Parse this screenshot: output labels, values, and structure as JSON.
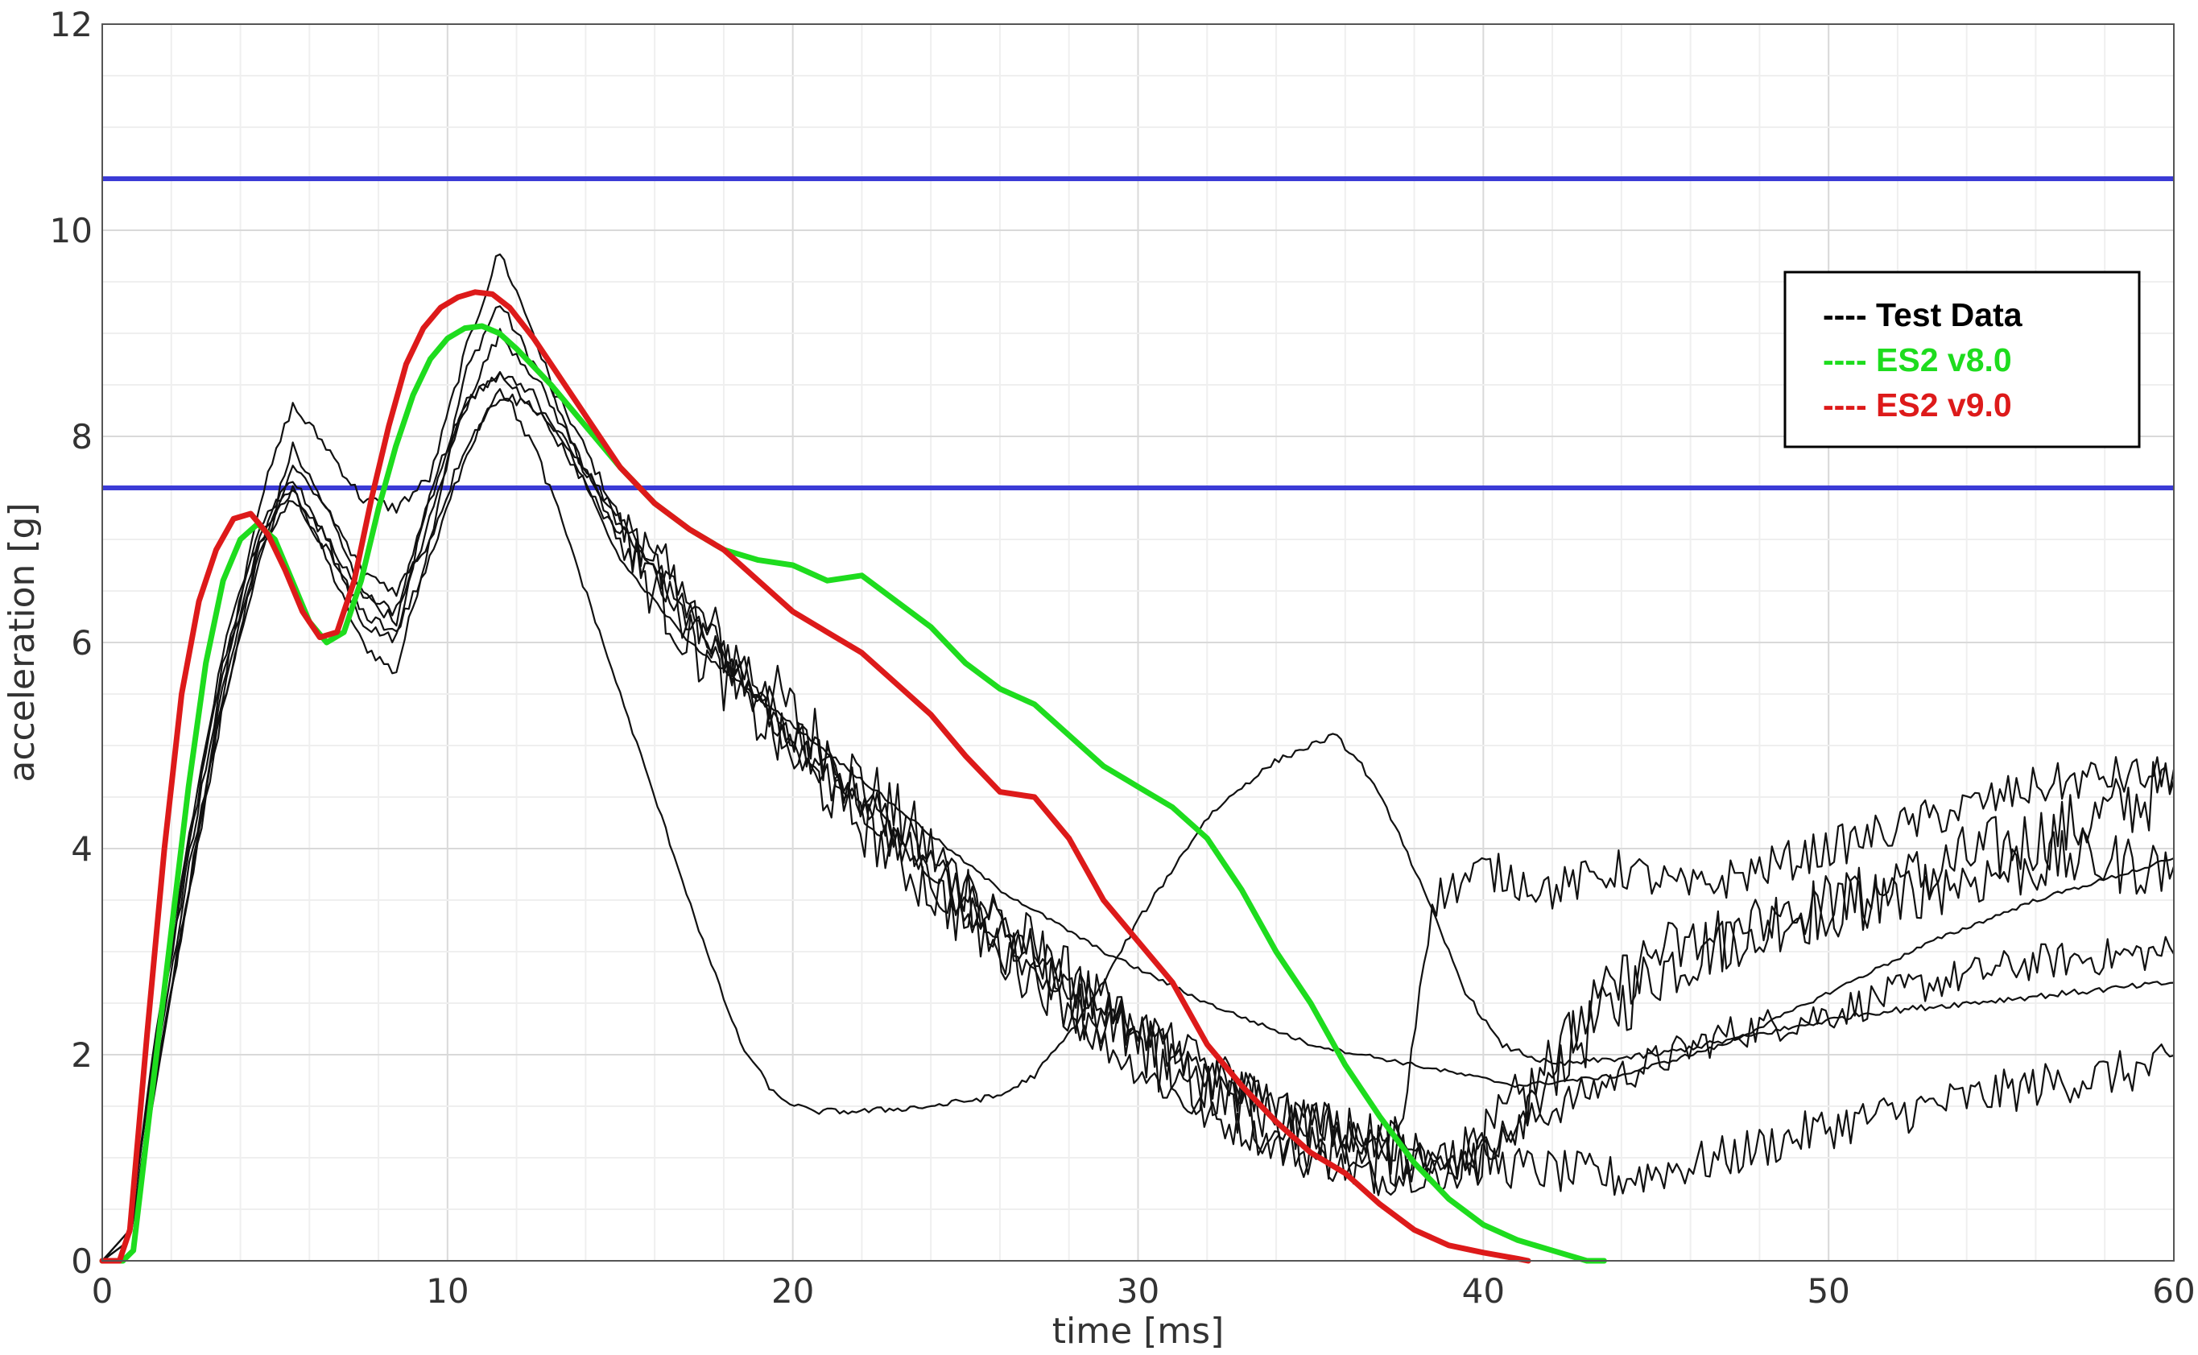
{
  "chart_data": {
    "type": "line",
    "xlabel": "time [ms]",
    "ylabel": "acceleration [g]",
    "xlim": [
      0,
      60
    ],
    "ylim": [
      0,
      12
    ],
    "x_ticks": [
      0,
      10,
      20,
      30,
      40,
      50,
      60
    ],
    "y_ticks": [
      0,
      2,
      4,
      6,
      8,
      10,
      12
    ],
    "grid": true,
    "legend_position": "top-right",
    "legend": [
      {
        "text": "---- Test Data",
        "color": "#000000"
      },
      {
        "text": "---- ES2 v8.0",
        "color": "#1edc1e"
      },
      {
        "text": "---- ES2 v9.0",
        "color": "#dd1a1a"
      }
    ],
    "reference_lines": [
      {
        "y": 10.5,
        "color": "#3b3bd6"
      },
      {
        "y": 7.5,
        "color": "#3b3bd6"
      }
    ],
    "series": [
      {
        "name": "ES2 v8.0",
        "color": "#1edc1e",
        "width": 7,
        "x": [
          0,
          0.6,
          0.9,
          1.5,
          2,
          2.5,
          3,
          3.5,
          4,
          4.5,
          5,
          5.5,
          6,
          6.5,
          7,
          7.5,
          8,
          8.5,
          9,
          9.5,
          10,
          10.5,
          11,
          11.5,
          12,
          13,
          14,
          15,
          16,
          17,
          18,
          19,
          20,
          21,
          22,
          23,
          24,
          25,
          26,
          27,
          28,
          29,
          30,
          31,
          32,
          33,
          34,
          35,
          36,
          37,
          38,
          39,
          40,
          41,
          42,
          43,
          43.5
        ],
        "y": [
          0,
          0,
          0.1,
          1.8,
          3.2,
          4.6,
          5.8,
          6.6,
          7.0,
          7.15,
          7.0,
          6.6,
          6.2,
          6.0,
          6.1,
          6.6,
          7.3,
          7.9,
          8.4,
          8.75,
          8.95,
          9.05,
          9.07,
          9.0,
          8.85,
          8.5,
          8.1,
          7.7,
          7.35,
          7.1,
          6.9,
          6.8,
          6.75,
          6.6,
          6.65,
          6.4,
          6.15,
          5.8,
          5.55,
          5.4,
          5.1,
          4.8,
          4.6,
          4.4,
          4.1,
          3.6,
          3.0,
          2.5,
          1.9,
          1.4,
          0.95,
          0.6,
          0.35,
          0.2,
          0.1,
          0.0,
          0.0
        ]
      },
      {
        "name": "ES2 v9.0",
        "color": "#dd1a1a",
        "width": 7,
        "x": [
          0,
          0.5,
          0.8,
          1.3,
          1.8,
          2.3,
          2.8,
          3.3,
          3.8,
          4.3,
          4.8,
          5.3,
          5.8,
          6.3,
          6.8,
          7.3,
          7.8,
          8.3,
          8.8,
          9.3,
          9.8,
          10.3,
          10.8,
          11.3,
          11.8,
          12.5,
          13,
          14,
          15,
          16,
          17,
          18,
          19,
          20,
          21,
          22,
          23,
          24,
          25,
          26,
          27,
          28,
          29,
          30,
          31,
          32,
          33,
          34,
          35,
          36,
          37,
          38,
          39,
          40,
          41,
          41.3
        ],
        "y": [
          0,
          0,
          0.3,
          2.2,
          4.0,
          5.5,
          6.4,
          6.9,
          7.2,
          7.25,
          7.05,
          6.7,
          6.3,
          6.05,
          6.1,
          6.6,
          7.4,
          8.1,
          8.7,
          9.05,
          9.25,
          9.35,
          9.4,
          9.38,
          9.25,
          8.95,
          8.7,
          8.2,
          7.7,
          7.35,
          7.1,
          6.9,
          6.6,
          6.3,
          6.1,
          5.9,
          5.6,
          5.3,
          4.9,
          4.55,
          4.5,
          4.1,
          3.5,
          3.1,
          2.7,
          2.1,
          1.7,
          1.35,
          1.05,
          0.85,
          0.55,
          0.3,
          0.15,
          0.08,
          0.02,
          0.0
        ]
      },
      {
        "name": "Test Data",
        "color": "#111111",
        "width": 2.2,
        "noise": 0.35,
        "noise_from": 16,
        "x": [
          0,
          0.8,
          1.5,
          2.5,
          3.5,
          4.5,
          5.5,
          6.5,
          7.5,
          8.5,
          9.5,
          10.5,
          11.5,
          12.5,
          13.5,
          15,
          17,
          20,
          23,
          26,
          29,
          32,
          35,
          38,
          40,
          42,
          45,
          48,
          51,
          54,
          57,
          60
        ],
        "y": [
          0,
          0.3,
          2.0,
          4.0,
          5.8,
          7.0,
          7.5,
          6.8,
          6.0,
          5.7,
          7.0,
          8.6,
          9.3,
          8.7,
          8.2,
          7.2,
          6.3,
          5.3,
          4.3,
          3.3,
          2.4,
          1.6,
          1.1,
          0.9,
          1.1,
          1.9,
          2.8,
          3.3,
          3.5,
          3.9,
          4.2,
          4.6
        ]
      },
      {
        "name": "Test Data",
        "color": "#111111",
        "width": 2.2,
        "noise": 0.18,
        "noise_from": 15,
        "x": [
          0,
          0.8,
          1.5,
          2.5,
          3.5,
          4.5,
          5.5,
          6.5,
          7.5,
          8.5,
          9.5,
          10.5,
          11.5,
          12.5,
          13.5,
          15,
          17,
          20,
          23,
          26,
          29,
          32,
          35,
          37,
          39,
          41,
          44,
          47,
          50,
          53,
          56,
          60
        ],
        "y": [
          0,
          0.2,
          1.6,
          3.6,
          5.6,
          7.3,
          8.3,
          7.9,
          7.4,
          7.3,
          7.6,
          8.8,
          9.8,
          9.0,
          8.0,
          7.0,
          6.2,
          5.0,
          4.0,
          3.0,
          2.1,
          1.4,
          1.0,
          0.8,
          0.9,
          1.3,
          1.8,
          2.2,
          2.4,
          2.7,
          2.9,
          3.0
        ]
      },
      {
        "name": "Test Data",
        "color": "#111111",
        "width": 2.2,
        "noise": 0.22,
        "noise_from": 16,
        "x": [
          0,
          0.8,
          1.5,
          2.5,
          3.5,
          4.5,
          5.5,
          6.5,
          7.5,
          8.5,
          9.5,
          10.5,
          11.5,
          12.5,
          13.5,
          15,
          17,
          20,
          23,
          26,
          29,
          32,
          35,
          38,
          41,
          44,
          47,
          50,
          53,
          56,
          60
        ],
        "y": [
          0,
          0.2,
          1.8,
          3.8,
          5.4,
          6.7,
          7.9,
          7.3,
          6.5,
          6.2,
          7.2,
          8.3,
          9.0,
          8.6,
          8.0,
          7.1,
          6.3,
          5.1,
          4.2,
          3.3,
          2.4,
          1.8,
          1.4,
          1.1,
          0.9,
          0.8,
          1.0,
          1.3,
          1.5,
          1.7,
          1.9
        ]
      },
      {
        "name": "Test Data",
        "color": "#111111",
        "width": 2.2,
        "noise": 0.3,
        "noise_from": 15,
        "x": [
          0,
          0.8,
          1.5,
          2.5,
          3.5,
          4.5,
          5.5,
          6.5,
          7.5,
          8.5,
          9.5,
          10.5,
          11.5,
          12.5,
          13.5,
          15,
          17,
          20,
          23,
          26,
          29,
          32,
          35,
          37.5,
          39,
          41,
          43,
          45,
          47,
          49,
          51,
          54,
          57,
          60
        ],
        "y": [
          0,
          0.3,
          2.1,
          4.1,
          5.9,
          7.1,
          7.6,
          7.0,
          6.2,
          6.0,
          7.5,
          8.3,
          8.6,
          8.3,
          7.8,
          7.0,
          6.0,
          4.9,
          3.9,
          3.0,
          2.3,
          1.7,
          1.3,
          1.1,
          0.9,
          1.4,
          2.4,
          3.0,
          3.1,
          3.3,
          3.5,
          3.7,
          3.9,
          3.8
        ]
      },
      {
        "name": "Test Data",
        "color": "#111111",
        "width": 2.2,
        "noise": 0.2,
        "noise_from": 15,
        "x": [
          0,
          0.8,
          1.5,
          2.5,
          3.5,
          4.5,
          5.5,
          6.5,
          7.5,
          8.5,
          9.5,
          10.5,
          11.5,
          12.5,
          13.5,
          15,
          17,
          20,
          23,
          26,
          29,
          32,
          34,
          36,
          37.5,
          38.5,
          40,
          42,
          44,
          46,
          48,
          50,
          52,
          54,
          56,
          58,
          60
        ],
        "y": [
          0,
          0.3,
          2.0,
          3.9,
          5.7,
          6.9,
          7.7,
          7.3,
          6.7,
          6.5,
          7.0,
          7.9,
          8.4,
          8.3,
          7.9,
          7.2,
          6.3,
          5.1,
          4.1,
          3.2,
          2.5,
          1.9,
          1.5,
          1.2,
          1.0,
          3.5,
          3.8,
          3.6,
          3.8,
          3.6,
          3.8,
          4.0,
          4.2,
          4.4,
          4.6,
          4.7,
          4.7
        ]
      },
      {
        "name": "Test Data",
        "color": "#111111",
        "width": 2.2,
        "noise": 0.03,
        "noise_from": 14,
        "x": [
          0,
          0.8,
          1.5,
          2.5,
          3.5,
          4.5,
          5.5,
          6.5,
          7.5,
          8.5,
          9.5,
          10.5,
          11.5,
          12.5,
          13.5,
          14.5,
          15.5,
          16.5,
          17.5,
          18.5,
          19.5,
          20.5,
          22,
          24,
          26,
          27,
          28,
          29,
          30,
          31,
          32,
          33,
          34,
          35,
          35.7,
          36.5,
          37.5,
          38.5,
          39.5,
          40.5,
          42,
          45,
          48,
          51,
          54,
          57,
          60
        ],
        "y": [
          0,
          0.2,
          1.7,
          3.5,
          5.4,
          6.8,
          7.4,
          6.9,
          6.3,
          6.1,
          6.8,
          7.8,
          8.5,
          7.9,
          7.0,
          6.0,
          5.0,
          4.0,
          3.0,
          2.1,
          1.6,
          1.45,
          1.45,
          1.5,
          1.6,
          1.8,
          2.2,
          2.7,
          3.3,
          3.8,
          4.3,
          4.6,
          4.85,
          5.0,
          5.1,
          4.8,
          4.2,
          3.4,
          2.6,
          2.1,
          1.9,
          2.0,
          2.2,
          2.4,
          2.5,
          2.6,
          2.7
        ]
      },
      {
        "name": "Test Data",
        "color": "#111111",
        "width": 2.2,
        "noise": 0.02,
        "noise_from": 14,
        "x": [
          0,
          0.8,
          1.5,
          2.5,
          3.5,
          4.5,
          5.5,
          6.5,
          7.5,
          8.5,
          9.5,
          10.5,
          11.5,
          12.5,
          13.5,
          15,
          17,
          20,
          23,
          26,
          29,
          32,
          35,
          38,
          41,
          44,
          47,
          50,
          53,
          56,
          60
        ],
        "y": [
          0,
          0.2,
          1.7,
          3.6,
          5.5,
          6.9,
          7.5,
          7.0,
          6.5,
          6.3,
          7.4,
          8.3,
          8.6,
          8.4,
          7.9,
          6.8,
          6.0,
          5.2,
          4.4,
          3.6,
          3.0,
          2.5,
          2.1,
          1.9,
          1.7,
          1.8,
          2.1,
          2.6,
          3.1,
          3.5,
          3.9
        ]
      }
    ]
  }
}
